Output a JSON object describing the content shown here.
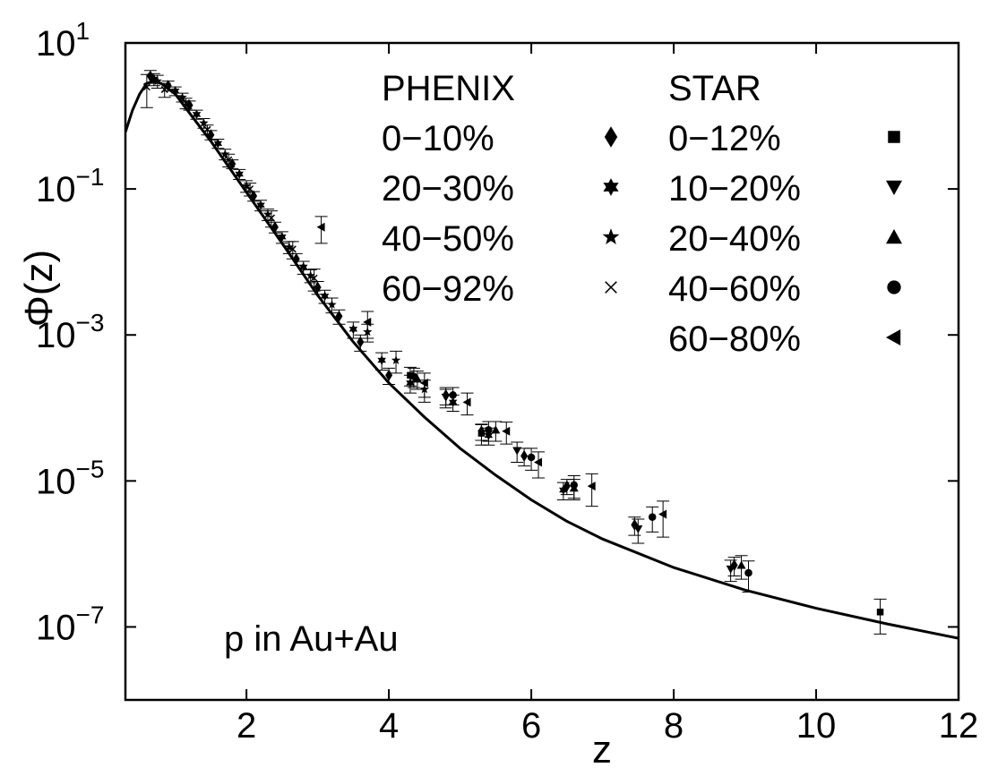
{
  "chart_data": {
    "type": "scatter",
    "xlabel": "z",
    "ylabel": "Φ(z)",
    "ylog": true,
    "xlim": [
      0.3,
      12
    ],
    "ylim": [
      1e-08,
      10
    ],
    "x_ticks": [
      2,
      4,
      6,
      8,
      10,
      12
    ],
    "x_tick_labels": [
      "2",
      "4",
      "6",
      "8",
      "10",
      "12"
    ],
    "y_ticks": [
      10,
      0.1,
      0.001,
      1e-05,
      1e-07
    ],
    "y_tick_labels": [
      {
        "base": "10",
        "exp": "1"
      },
      {
        "base": "10",
        "exp": "−1"
      },
      {
        "base": "10",
        "exp": "−3"
      },
      {
        "base": "10",
        "exp": "−5"
      },
      {
        "base": "10",
        "exp": "−7"
      }
    ],
    "annotation": "p in Au+Au",
    "legend_placement": "top-right",
    "legend": {
      "phenix_title": "PHENIX",
      "star_title": "STAR",
      "phenix": [
        {
          "label": "0−10%",
          "marker": "diamond"
        },
        {
          "label": "20−30%",
          "marker": "star6"
        },
        {
          "label": "40−50%",
          "marker": "star5"
        },
        {
          "label": "60−92%",
          "marker": "cross"
        }
      ],
      "star": [
        {
          "label": "0−12%",
          "marker": "square"
        },
        {
          "label": "10−20%",
          "marker": "triangle-down"
        },
        {
          "label": "20−40%",
          "marker": "triangle-up"
        },
        {
          "label": "40−60%",
          "marker": "circle"
        },
        {
          "label": "60−80%",
          "marker": "triangle-left"
        }
      ]
    },
    "fit_curve": {
      "x": [
        0.3,
        0.4,
        0.5,
        0.6,
        0.7,
        0.8,
        1.0,
        1.2,
        1.5,
        2.0,
        2.5,
        3.0,
        3.5,
        4.0,
        4.5,
        5.0,
        5.5,
        6.0,
        6.5,
        7.0,
        8.0,
        9.0,
        10.0,
        11.0,
        12.0
      ],
      "y": [
        0.6,
        1.2,
        2.0,
        2.8,
        3.0,
        2.8,
        2.0,
        1.1,
        0.45,
        0.09,
        0.018,
        0.0035,
        0.0008,
        0.00022,
        7.5e-05,
        2.8e-05,
        1.2e-05,
        5.5e-06,
        2.8e-06,
        1.6e-06,
        6.5e-07,
        3.2e-07,
        1.8e-07,
        1.1e-07,
        7e-08
      ]
    },
    "series": [
      {
        "name": "0−10%",
        "group": "PHENIX",
        "marker": "diamond",
        "points": [
          [
            0.65,
            3.5,
            0.7
          ],
          [
            0.9,
            2.6,
            0.4
          ],
          [
            1.2,
            1.4,
            0.2
          ],
          [
            1.5,
            0.55,
            0.08
          ],
          [
            1.8,
            0.22,
            0.03
          ],
          [
            2.1,
            0.08,
            0.012
          ],
          [
            2.4,
            0.03,
            0.005
          ],
          [
            2.7,
            0.011,
            0.002
          ],
          [
            3.0,
            0.0045,
            0.0009
          ],
          [
            3.3,
            0.0018,
            0.0004
          ],
          [
            3.6,
            0.0008,
            0.0002
          ],
          [
            4.0,
            0.00028,
            7e-05
          ],
          [
            4.8,
            0.00015,
            4e-05
          ],
          [
            5.3,
            4.8e-05,
            1.2e-05
          ],
          [
            5.9,
            2.2e-05,
            6e-06
          ],
          [
            6.5,
            8.5e-06,
            2e-06
          ],
          [
            7.45,
            2.5e-06,
            7e-07
          ],
          [
            8.85,
            7e-07,
            2e-07
          ]
        ]
      },
      {
        "name": "20−30%",
        "group": "PHENIX",
        "marker": "star6",
        "points": [
          [
            0.7,
            3.2,
            0.6
          ],
          [
            1.0,
            2.2,
            0.3
          ],
          [
            1.3,
            1.05,
            0.15
          ],
          [
            1.6,
            0.42,
            0.06
          ],
          [
            1.9,
            0.16,
            0.025
          ],
          [
            2.2,
            0.06,
            0.01
          ],
          [
            2.5,
            0.022,
            0.004
          ],
          [
            2.8,
            0.0085,
            0.0017
          ],
          [
            3.1,
            0.0034,
            0.0007
          ],
          [
            3.5,
            0.0012,
            0.0003
          ],
          [
            3.9,
            0.00045,
            0.00012
          ],
          [
            4.3,
            0.00022,
            6e-05
          ],
          [
            4.9,
            0.00012,
            3e-05
          ],
          [
            5.4,
            4.2e-05,
            1.1e-05
          ],
          [
            6.45,
            7.5e-06,
            2e-06
          ]
        ]
      },
      {
        "name": "40−50%",
        "group": "PHENIX",
        "marker": "star5",
        "points": [
          [
            0.75,
            3.0,
            0.6
          ],
          [
            1.1,
            1.8,
            0.25
          ],
          [
            1.4,
            0.8,
            0.12
          ],
          [
            1.7,
            0.3,
            0.05
          ],
          [
            2.0,
            0.11,
            0.02
          ],
          [
            2.3,
            0.045,
            0.008
          ],
          [
            2.6,
            0.016,
            0.003
          ],
          [
            2.9,
            0.0065,
            0.0013
          ],
          [
            3.2,
            0.0026,
            0.0006
          ],
          [
            3.7,
            0.0011,
            0.0003
          ],
          [
            4.1,
            0.00045,
            0.00015
          ],
          [
            4.5,
            0.00018,
            6e-05
          ]
        ]
      },
      {
        "name": "60−92%",
        "group": "PHENIX",
        "marker": "cross",
        "points": [
          [
            0.6,
            2.5,
            1.2
          ],
          [
            0.85,
            2.3,
            0.5
          ],
          [
            1.15,
            1.5,
            0.25
          ],
          [
            1.45,
            0.65,
            0.1
          ],
          [
            1.75,
            0.25,
            0.05
          ],
          [
            2.05,
            0.1,
            0.02
          ],
          [
            2.35,
            0.04,
            0.01
          ],
          [
            2.65,
            0.015,
            0.004
          ],
          [
            2.95,
            0.006,
            0.002
          ]
        ]
      },
      {
        "name": "0−12%",
        "group": "STAR",
        "marker": "square",
        "points": [
          [
            4.3,
            0.00028,
            8e-05
          ],
          [
            5.3,
            4.5e-05,
            1.4e-05
          ],
          [
            10.9,
            1.6e-07,
            8e-08
          ]
        ]
      },
      {
        "name": "10−20%",
        "group": "STAR",
        "marker": "triangle-down",
        "points": [
          [
            4.8,
            0.00014,
            4e-05
          ],
          [
            5.8,
            2.6e-05,
            8e-06
          ],
          [
            7.5,
            2.2e-06,
            8e-07
          ],
          [
            8.8,
            6.2e-07,
            2e-07
          ]
        ]
      },
      {
        "name": "20−40%",
        "group": "STAR",
        "marker": "triangle-up",
        "points": [
          [
            4.4,
            0.00025,
            7e-05
          ],
          [
            5.5,
            5e-05,
            1.5e-05
          ],
          [
            6.6,
            8e-06,
            2.5e-06
          ],
          [
            8.95,
            7e-07,
            2.5e-07
          ]
        ]
      },
      {
        "name": "40−60%",
        "group": "STAR",
        "marker": "circle",
        "points": [
          [
            4.35,
            0.00027,
            8e-05
          ],
          [
            4.9,
            0.00015,
            4e-05
          ],
          [
            5.4,
            5e-05,
            1.5e-05
          ],
          [
            6.0,
            2.1e-05,
            7e-06
          ],
          [
            6.6,
            8.8e-06,
            3e-06
          ],
          [
            7.7,
            3.2e-06,
            1.2e-06
          ],
          [
            9.05,
            5.5e-07,
            2.5e-07
          ]
        ]
      },
      {
        "name": "60−80%",
        "group": "STAR",
        "marker": "triangle-left",
        "points": [
          [
            3.05,
            0.03,
            0.012
          ],
          [
            3.7,
            0.0015,
            0.0006
          ],
          [
            4.5,
            0.00022,
            8e-05
          ],
          [
            5.1,
            0.00012,
            4e-05
          ],
          [
            5.65,
            4.8e-05,
            1.6e-05
          ],
          [
            6.1,
            1.8e-05,
            7e-06
          ],
          [
            6.85,
            8.5e-06,
            4e-06
          ],
          [
            7.85,
            3.5e-06,
            1.8e-06
          ]
        ]
      }
    ]
  }
}
